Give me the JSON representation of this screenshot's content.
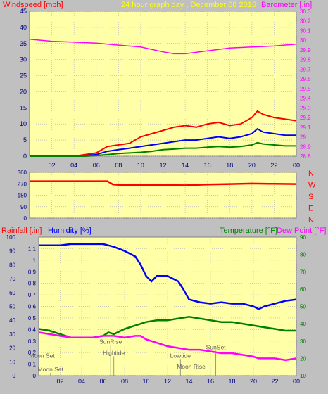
{
  "header": {
    "left_label": "Windspeed [mph]",
    "title": "24 hour graph day , December 08 2016",
    "right_label": "Barometer [.in]"
  },
  "colors": {
    "background": "#c0c0c0",
    "plot_bg": "#ffffa8",
    "grid": "#b8b8b8",
    "axis_red": "#ff0000",
    "magenta": "#ff00ff",
    "blue": "#0000ff",
    "green": "#008000",
    "yellow": "#ffff00",
    "dark_red": "#800000"
  },
  "chart_data": [
    {
      "id": "wind-baro",
      "type": "line",
      "x_ticks": [
        "02",
        "04",
        "06",
        "08",
        "10",
        "12",
        "14",
        "16",
        "18",
        "20",
        "22",
        "00"
      ],
      "y_left": {
        "label": "Windspeed [mph]",
        "range": [
          0,
          45
        ],
        "ticks": [
          "0",
          "5",
          "10",
          "15",
          "20",
          "25",
          "30",
          "35",
          "40",
          "45"
        ]
      },
      "y_right": {
        "label": "Barometer [.in]",
        "range": [
          28.8,
          30.3
        ],
        "ticks": [
          "28.8",
          "28.9",
          "29",
          "29.1",
          "29.2",
          "29.3",
          "29.4",
          "29.5",
          "29.6",
          "29.7",
          "29.8",
          "29.9",
          "30",
          "30.1",
          "30.2",
          "30.3"
        ]
      },
      "series": [
        {
          "axis": "right",
          "color": "#ff00ff",
          "x": [
            0,
            2,
            4,
            6,
            8,
            10,
            12,
            13,
            14,
            16,
            18,
            20,
            22,
            24
          ],
          "y": [
            30.01,
            29.99,
            29.98,
            29.97,
            29.95,
            29.93,
            29.88,
            29.86,
            29.86,
            29.89,
            29.92,
            29.93,
            29.94,
            29.96
          ]
        },
        {
          "axis": "left",
          "color": "#ff0000",
          "x": [
            0,
            2,
            4,
            5,
            6,
            7,
            8,
            9,
            10,
            11,
            12,
            13,
            14,
            15,
            16,
            17,
            18,
            19,
            20,
            20.5,
            21,
            22,
            23,
            24
          ],
          "y": [
            0,
            0,
            0,
            0.5,
            1,
            3,
            3.5,
            4,
            6,
            7,
            8,
            9,
            9.5,
            9,
            10,
            10.5,
            9.5,
            10,
            12,
            14,
            13,
            12,
            11.5,
            11
          ]
        },
        {
          "axis": "left",
          "color": "#0000ff",
          "x": [
            0,
            2,
            4,
            5,
            6,
            7,
            8,
            9,
            10,
            11,
            12,
            13,
            14,
            15,
            16,
            17,
            18,
            19,
            20,
            20.5,
            21,
            22,
            23,
            24
          ],
          "y": [
            0,
            0,
            0,
            0.2,
            0.5,
            1.5,
            2,
            2.5,
            3,
            3.5,
            4,
            4.5,
            5,
            5,
            5.5,
            6,
            5.5,
            6,
            7,
            8.5,
            7.5,
            7,
            6.5,
            6.5
          ]
        },
        {
          "axis": "left",
          "color": "#008000",
          "x": [
            0,
            2,
            4,
            5,
            6,
            7,
            8,
            9,
            10,
            11,
            12,
            13,
            14,
            15,
            16,
            17,
            18,
            19,
            20,
            20.5,
            21,
            22,
            23,
            24
          ],
          "y": [
            0,
            0,
            0,
            0,
            0.2,
            0.5,
            0.8,
            1,
            1.2,
            1.5,
            2,
            2.2,
            2.5,
            2.5,
            2.8,
            3,
            2.8,
            3,
            3.5,
            4.2,
            3.8,
            3.5,
            3.2,
            3.2
          ]
        }
      ]
    },
    {
      "id": "wind-dir",
      "type": "line",
      "y_left": {
        "range": [
          0,
          360
        ],
        "ticks": [
          "0",
          "90",
          "180",
          "270",
          "360"
        ]
      },
      "direction_labels": [
        "N",
        "W",
        "S",
        "E",
        "N"
      ],
      "series": [
        {
          "color": "#ff0000",
          "x": [
            0,
            2,
            4,
            6,
            7,
            7.5,
            8,
            10,
            12,
            14,
            16,
            18,
            20,
            22,
            24
          ],
          "y": [
            290,
            290,
            290,
            290,
            290,
            265,
            262,
            262,
            262,
            258,
            265,
            268,
            272,
            270,
            268
          ]
        }
      ]
    },
    {
      "id": "rain-hum-temp",
      "type": "line",
      "labels": {
        "rainfall": "Rainfall [.in]",
        "humidity": "Humidity [%]",
        "temperature": "Temperature [°F]",
        "dewpoint": "Dew Point [°F]"
      },
      "y_rain": {
        "range": [
          0,
          1.2
        ],
        "ticks": [
          "0",
          "0.1",
          "0.2",
          "0.3",
          "0.4",
          "0.5",
          "0.6",
          "0.7",
          "0.8",
          "0.9",
          "1",
          "1.1"
        ]
      },
      "y_hum": {
        "range": [
          0,
          100
        ],
        "ticks": [
          "0",
          "10",
          "20",
          "30",
          "40",
          "50",
          "60",
          "70",
          "80",
          "90",
          "100"
        ]
      },
      "y_temp": {
        "range": [
          10,
          90
        ],
        "ticks": [
          "10",
          "20",
          "30",
          "40",
          "50",
          "60",
          "70",
          "80",
          "90"
        ]
      },
      "x_ticks": [
        "02",
        "04",
        "06",
        "08",
        "10",
        "12",
        "14",
        "16",
        "18",
        "20",
        "22",
        "00"
      ],
      "series": [
        {
          "axis": "hum",
          "color": "#0000ff",
          "x": [
            0,
            1,
            2,
            3,
            4,
            5,
            6,
            6.5,
            7,
            8,
            9,
            9.5,
            10,
            10.5,
            11,
            12,
            13,
            13.5,
            14,
            15,
            16,
            17,
            18,
            19,
            20,
            20.5,
            21,
            22,
            23,
            24
          ],
          "y": [
            94,
            94,
            94,
            95,
            95,
            95,
            95,
            94,
            93,
            90,
            86,
            80,
            72,
            68,
            72,
            72,
            68,
            62,
            55,
            53,
            52,
            53,
            52,
            52,
            50,
            48,
            50,
            52,
            54,
            55
          ]
        },
        {
          "axis": "temp",
          "color": "#008000",
          "x": [
            0,
            1,
            2,
            3,
            4,
            5,
            6,
            6.5,
            7,
            8,
            9,
            10,
            11,
            12,
            13,
            14,
            15,
            16,
            17,
            18,
            19,
            20,
            21,
            22,
            23,
            24
          ],
          "y": [
            37,
            36,
            34,
            32,
            32,
            32,
            33,
            35,
            34,
            37,
            39,
            41,
            42,
            42,
            43,
            44,
            43,
            42,
            41,
            41,
            40,
            39,
            38,
            37,
            36,
            36
          ]
        },
        {
          "axis": "temp",
          "color": "#ff00ff",
          "x": [
            0,
            1,
            2,
            3,
            4,
            5,
            6,
            7,
            8,
            9,
            9.5,
            10,
            11,
            12,
            13,
            14,
            15,
            16,
            17,
            18,
            19,
            20,
            20.5,
            21,
            22,
            23,
            24
          ],
          "y": [
            35,
            34,
            33,
            32,
            32,
            32,
            33,
            33,
            32,
            33,
            33,
            31,
            29,
            27,
            26,
            25,
            25,
            24,
            23,
            23,
            22,
            21,
            20,
            20,
            20,
            19,
            20
          ]
        }
      ],
      "events": [
        {
          "text": "Moon Set",
          "x": 0.3,
          "line_y": 0.88
        },
        {
          "text": "Moon Set",
          "x": 1.1,
          "line_y": 0.98
        },
        {
          "text": "Hightide",
          "x": 7.0,
          "line_y": 0.86
        },
        {
          "text": "SunRise",
          "x": 6.7,
          "line_y": 0.78
        },
        {
          "text": "Lowtide",
          "x": 13.2,
          "line_y": 0.88
        },
        {
          "text": "SunSet",
          "x": 16.5,
          "line_y": 0.82
        },
        {
          "text": "Moon Rise",
          "x": 14.2,
          "line_y": 0.96
        }
      ]
    }
  ]
}
